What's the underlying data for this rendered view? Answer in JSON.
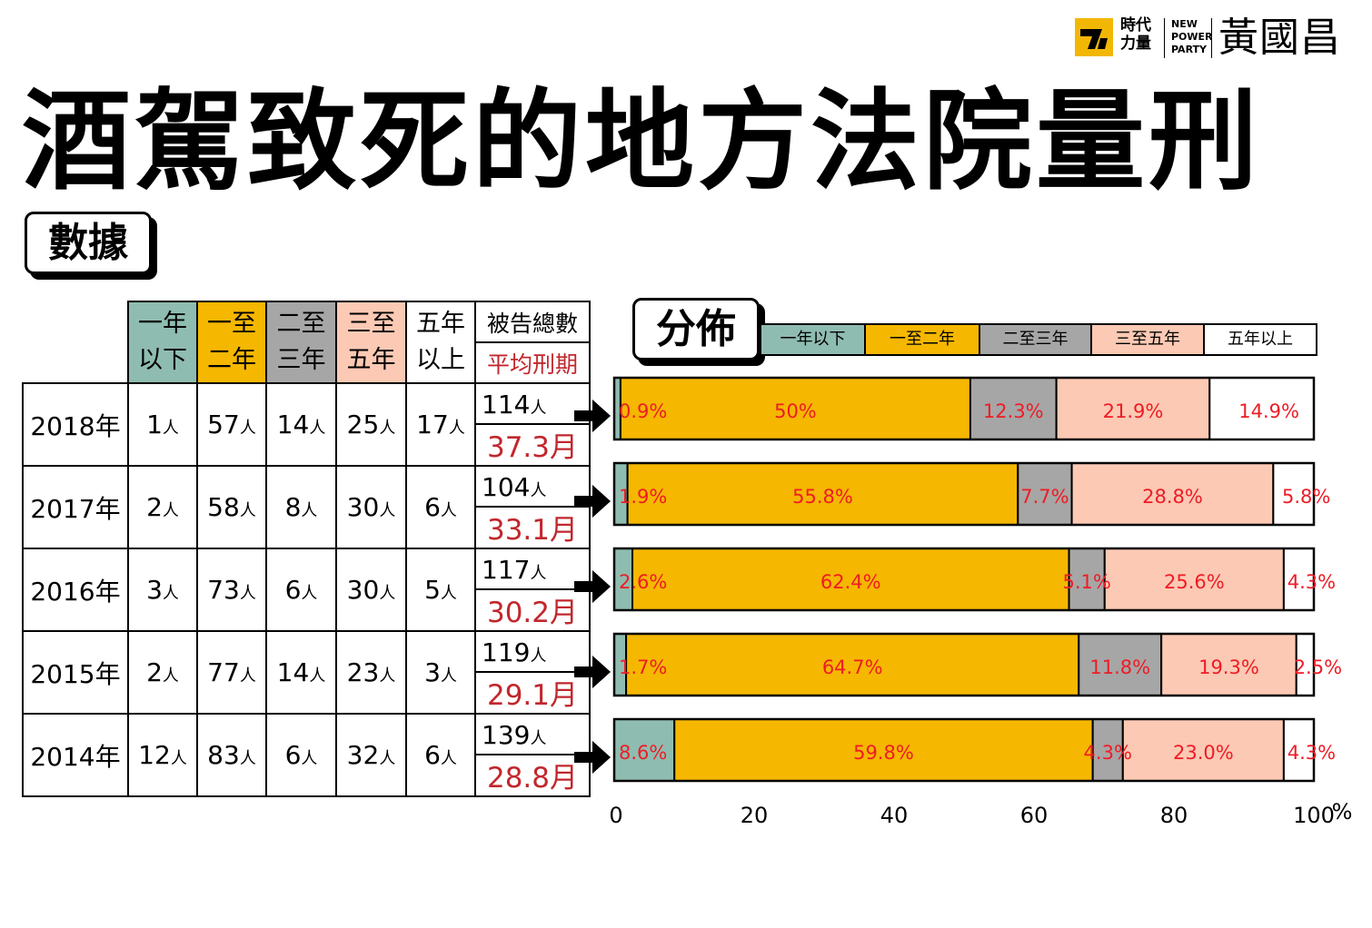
{
  "header": {
    "logo_zh_line1": "時代",
    "logo_zh_line2": "力量",
    "logo_en_line1": "NEW",
    "logo_en_line2": "POWER",
    "logo_en_line3": "PARTY",
    "logo_name": "黃國昌"
  },
  "title": "酒駕致死的地方法院量刑",
  "data_tag": "數據",
  "distribution_tag": "分佈",
  "table": {
    "headers": [
      {
        "line1": "一年",
        "line2": "以下",
        "color": "#8fbcb0"
      },
      {
        "line1": "一至",
        "line2": "二年",
        "color": "#f5b700"
      },
      {
        "line1": "二至",
        "line2": "三年",
        "color": "#a6a6a6"
      },
      {
        "line1": "三至",
        "line2": "五年",
        "color": "#fcc9b4"
      },
      {
        "line1": "五年",
        "line2": "以上",
        "color": "#ffffff"
      }
    ],
    "total_header": "被告總數",
    "avg_header": "平均刑期",
    "unit": "人",
    "rows": [
      {
        "year": "2018年",
        "counts": [
          "1",
          "57",
          "14",
          "25",
          "17"
        ],
        "total": "114",
        "avg": "37.3月"
      },
      {
        "year": "2017年",
        "counts": [
          "2",
          "58",
          "8",
          "30",
          "6"
        ],
        "total": "104",
        "avg": "33.1月"
      },
      {
        "year": "2016年",
        "counts": [
          "3",
          "73",
          "6",
          "30",
          "5"
        ],
        "total": "117",
        "avg": "30.2月"
      },
      {
        "year": "2015年",
        "counts": [
          "2",
          "77",
          "14",
          "23",
          "3"
        ],
        "total": "119",
        "avg": "29.1月"
      },
      {
        "year": "2014年",
        "counts": [
          "12",
          "83",
          "6",
          "32",
          "6"
        ],
        "total": "139",
        "avg": "28.8月"
      }
    ]
  },
  "chart_data": {
    "type": "bar",
    "orientation": "horizontal-stacked",
    "categories": [
      "2018年",
      "2017年",
      "2016年",
      "2015年",
      "2014年"
    ],
    "series": [
      {
        "name": "一年以下",
        "color": "#8fbcb0",
        "values": [
          0.9,
          1.9,
          2.6,
          1.7,
          8.6
        ],
        "labels": [
          "0.9%",
          "1.9%",
          "2.6%",
          "1.7%",
          "8.6%"
        ]
      },
      {
        "name": "一至二年",
        "color": "#f5b700",
        "values": [
          50,
          55.8,
          62.4,
          64.7,
          59.8
        ],
        "labels": [
          "50%",
          "55.8%",
          "62.4%",
          "64.7%",
          "59.8%"
        ]
      },
      {
        "name": "二至三年",
        "color": "#a6a6a6",
        "values": [
          12.3,
          7.7,
          5.1,
          11.8,
          4.3
        ],
        "labels": [
          "12.3%",
          "7.7%",
          "5.1%",
          "11.8%",
          "4.3%"
        ]
      },
      {
        "name": "三至五年",
        "color": "#fcc9b4",
        "values": [
          21.9,
          28.8,
          25.6,
          19.3,
          23.0
        ],
        "labels": [
          "21.9%",
          "28.8%",
          "25.6%",
          "19.3%",
          "23.0%"
        ]
      },
      {
        "name": "五年以上",
        "color": "#ffffff",
        "values": [
          14.9,
          5.8,
          4.3,
          2.5,
          4.3
        ],
        "labels": [
          "14.9%",
          "5.8%",
          "4.3%",
          "2.5%",
          "4.3%"
        ]
      }
    ],
    "xlim": [
      0,
      100
    ],
    "xticks": [
      "0",
      "20",
      "40",
      "60",
      "80",
      "100"
    ],
    "xunit": "%",
    "label_color": "#ee1c25",
    "legend_position": "top"
  }
}
